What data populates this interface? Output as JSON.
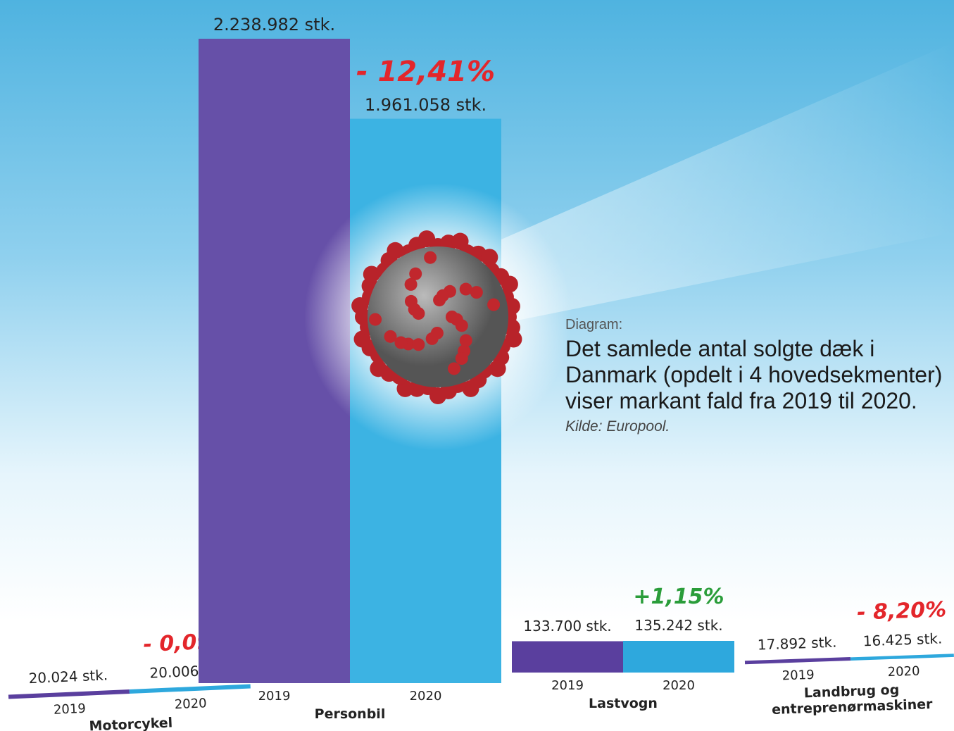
{
  "caption": {
    "label": "Diagram:",
    "headline": "Det samlede antal solgte dæk i Danmark (opdelt i 4 hovedsekmenter) viser markant fald fra 2019 til 2020.",
    "source": "Kilde: Europool."
  },
  "chart_data": [
    {
      "type": "bar",
      "title": "Motorcykel",
      "categories": [
        "2019",
        "2020"
      ],
      "values": [
        20024,
        20006
      ],
      "value_labels": [
        "20.024 stk.",
        "20.006 stk."
      ],
      "colors": [
        "#5a3f9e",
        "#2ea8dd"
      ],
      "annotation": "- 0,09%",
      "annotation_color": "#e3262b"
    },
    {
      "type": "bar",
      "title": "Personbil",
      "categories": [
        "2019",
        "2020"
      ],
      "values": [
        2238982,
        1961058
      ],
      "value_labels": [
        "2.238.982 stk.",
        "1.961.058 stk."
      ],
      "colors": [
        "#6650a8",
        "#3cb3e3"
      ],
      "annotation": "- 12,41%",
      "annotation_color": "#e3262b"
    },
    {
      "type": "bar",
      "title": "Lastvogn",
      "categories": [
        "2019",
        "2020"
      ],
      "values": [
        133700,
        135242
      ],
      "value_labels": [
        "133.700 stk.",
        "135.242 stk."
      ],
      "colors": [
        "#5a3f9e",
        "#2ea8dd"
      ],
      "annotation": "+1,15%",
      "annotation_color": "#2a9d3a"
    },
    {
      "type": "bar",
      "title": "Landbrug og entreprenørmaskiner",
      "categories": [
        "2019",
        "2020"
      ],
      "values": [
        17892,
        16425
      ],
      "value_labels": [
        "17.892 stk.",
        "16.425 stk."
      ],
      "colors": [
        "#5a3f9e",
        "#2ea8dd"
      ],
      "annotation": "- 8,20%",
      "annotation_color": "#e3262b"
    }
  ]
}
